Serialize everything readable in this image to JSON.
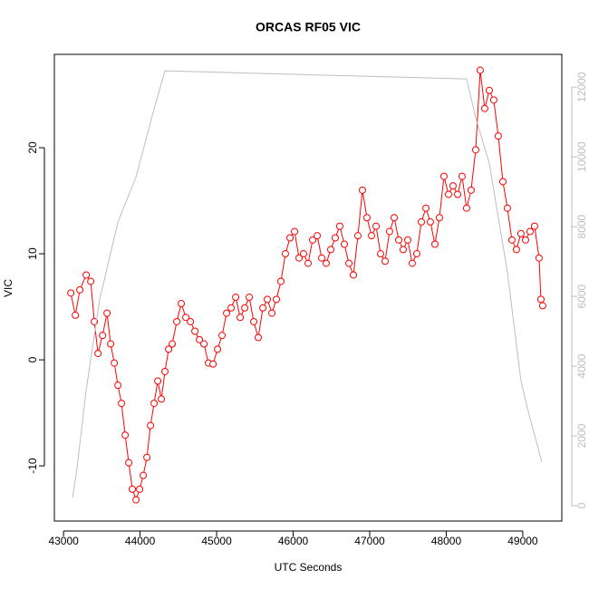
{
  "chart_data": {
    "type": "line",
    "title": "ORCAS RF05 VIC",
    "x_label": "UTC Seconds",
    "y_label": "VIC",
    "xlim": [
      42880,
      49510
    ],
    "ylim": [
      -15.2,
      28.8
    ],
    "y2lim": [
      -440,
      12940
    ],
    "xticks": [
      43000,
      44000,
      45000,
      46000,
      47000,
      48000,
      49000
    ],
    "yticks": [
      -10,
      0,
      10,
      20
    ],
    "y2ticks": [
      0,
      2000,
      4000,
      6000,
      8000,
      10000,
      12000
    ],
    "series": [
      {
        "color": "#ff0000",
        "markers": true,
        "x": [
          43095,
          43154,
          43213,
          43296,
          43355,
          43402,
          43450,
          43509,
          43568,
          43615,
          43663,
          43710,
          43757,
          43805,
          43852,
          43899,
          43947,
          43994,
          44041,
          44089,
          44136,
          44183,
          44231,
          44278,
          44325,
          44373,
          44420,
          44479,
          44538,
          44598,
          44657,
          44716,
          44775,
          44834,
          44893,
          44953,
          45012,
          45071,
          45130,
          45189,
          45249,
          45308,
          45367,
          45426,
          45485,
          45544,
          45604,
          45663,
          45722,
          45781,
          45840,
          45899,
          45959,
          46018,
          46077,
          46136,
          46195,
          46254,
          46314,
          46373,
          46432,
          46491,
          46550,
          46609,
          46669,
          46728,
          46787,
          46846,
          46905,
          46964,
          47024,
          47083,
          47142,
          47201,
          47260,
          47320,
          47379,
          47438,
          47497,
          47556,
          47615,
          47675,
          47734,
          47793,
          47852,
          47911,
          47970,
          48030,
          48089,
          48148,
          48207,
          48266,
          48325,
          48385,
          48444,
          48503,
          48562,
          48621,
          48680,
          48740,
          48799,
          48858,
          48917,
          48976,
          49036,
          49095,
          49154,
          49213,
          49237,
          49260
        ],
        "values": [
          6.3,
          4.2,
          6.6,
          8.0,
          7.4,
          3.6,
          0.6,
          2.3,
          4.4,
          1.5,
          -0.3,
          -2.4,
          -4.1,
          -7.1,
          -9.7,
          -12.2,
          -13.2,
          -12.2,
          -10.9,
          -9.2,
          -6.2,
          -4.1,
          -2.0,
          -3.7,
          -1.1,
          1.0,
          1.5,
          3.6,
          5.3,
          4.0,
          3.6,
          2.7,
          1.9,
          1.5,
          -0.3,
          -0.4,
          1.0,
          2.3,
          4.4,
          4.9,
          5.9,
          4.0,
          4.9,
          5.9,
          3.6,
          2.1,
          4.9,
          5.7,
          4.4,
          5.7,
          7.4,
          10.0,
          11.5,
          12.1,
          9.6,
          10.0,
          9.1,
          11.3,
          11.7,
          9.6,
          9.1,
          10.4,
          11.5,
          12.6,
          10.9,
          9.1,
          8.0,
          11.7,
          16.0,
          13.4,
          11.7,
          12.6,
          10.0,
          9.3,
          12.1,
          13.4,
          11.3,
          10.4,
          11.3,
          9.1,
          10.0,
          13.0,
          14.3,
          13.0,
          10.9,
          13.4,
          17.3,
          15.6,
          16.4,
          15.6,
          17.3,
          14.3,
          16.0,
          19.8,
          27.3,
          23.7,
          25.4,
          24.5,
          21.1,
          16.8,
          14.3,
          11.3,
          10.4,
          11.9,
          11.3,
          12.1,
          12.6,
          9.6,
          5.7,
          5.1
        ]
      },
      {
        "color": "#bebebe",
        "axis": "y2",
        "x": [
          43118,
          43178,
          43296,
          43473,
          43710,
          43947,
          44183,
          44325,
          48266,
          48385,
          48562,
          48799,
          48976,
          49059,
          49249
        ],
        "values": [
          234,
          1117,
          3325,
          5922,
          8130,
          9429,
          11377,
          12468,
          12234,
          11117,
          9818,
          6701,
          3584,
          2805,
          1247
        ]
      }
    ]
  }
}
